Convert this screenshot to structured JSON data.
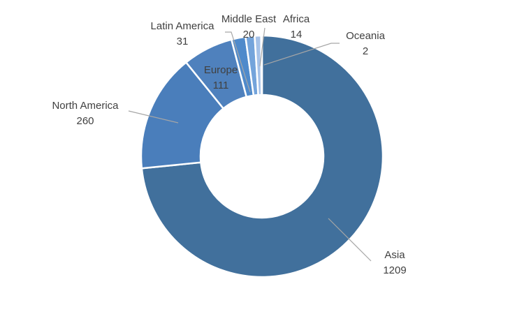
{
  "chart_data": {
    "type": "pie",
    "variant": "donut",
    "title": "",
    "categories": [
      "Asia",
      "North America",
      "Europe",
      "Latin America",
      "Middle East",
      "Africa",
      "Oceania"
    ],
    "values": [
      1209,
      260,
      111,
      31,
      20,
      14,
      2
    ],
    "colors": [
      "#41709C",
      "#4A7EBB",
      "#4F81BD",
      "#4F8ACB",
      "#74A4DB",
      "#A6C2E8",
      "#C7D9F1"
    ],
    "legend": "none",
    "data_labels": true,
    "label_text_color": "#404040",
    "leader_line_color": "#A6A6A6"
  }
}
